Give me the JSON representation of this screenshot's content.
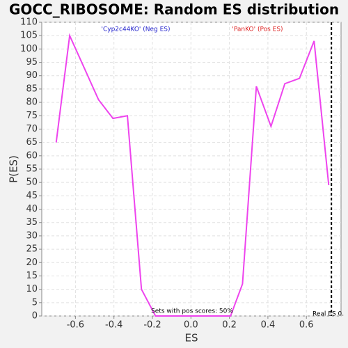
{
  "chart_data": {
    "type": "line",
    "title": "GOCC_RIBOSOME: Random ES distribution",
    "x_label": "ES",
    "y_label": "P(ES)",
    "neg_label": "'Cyp2c44KO' (Neg ES)",
    "neg_color": "#2222cc",
    "pos_label": "'PanKO' (Pos ES)",
    "pos_color": "#dd2222",
    "pos_note": "Sets with pos scores: 50%",
    "real_es": {
      "x": 0.73,
      "label": "Real ES 0."
    },
    "x": [
      -0.7,
      -0.63,
      -0.48,
      -0.405,
      -0.33,
      -0.257,
      -0.184,
      0.206,
      0.268,
      0.34,
      0.416,
      0.488,
      0.564,
      0.64,
      0.716
    ],
    "series": [
      {
        "name": "P(ES)",
        "color": "#ee44ee",
        "values": [
          65,
          105,
          81,
          74,
          75,
          10,
          0,
          0,
          12,
          86,
          71,
          87,
          89,
          103,
          49
        ]
      }
    ],
    "xlim": [
      -0.775,
      0.78
    ],
    "ylim": [
      0,
      110
    ],
    "xticks": [
      -0.6,
      -0.4,
      -0.2,
      {
        "value": 0,
        "label": "0.0"
      },
      0.2,
      0.4,
      0.6
    ],
    "yticks": [
      0,
      5,
      10,
      15,
      20,
      25,
      30,
      35,
      40,
      45,
      50,
      55,
      60,
      65,
      70,
      75,
      80,
      85,
      90,
      95,
      100,
      105,
      110
    ],
    "grid": true
  }
}
